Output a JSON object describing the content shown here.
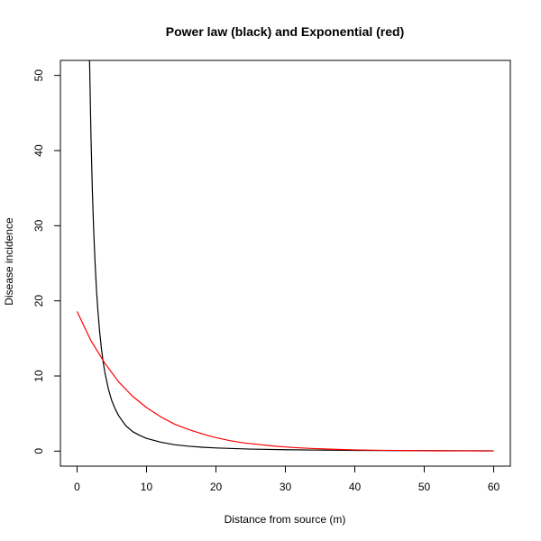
{
  "chart_data": {
    "type": "line",
    "title": "Power law (black) and Exponential (red)",
    "xlabel": "Distance from source (m)",
    "ylabel": "Disease incidence",
    "xlim": [
      -2.4,
      62.4
    ],
    "ylim": [
      -2,
      52
    ],
    "x_ticks": [
      "0",
      "10",
      "20",
      "30",
      "40",
      "50",
      "60"
    ],
    "y_ticks": [
      "0",
      "10",
      "20",
      "30",
      "40",
      "50"
    ],
    "grid": false,
    "legend": "none",
    "series": [
      {
        "color": "#000000",
        "x": [
          1.8,
          2,
          2.2,
          2.4,
          2.6,
          2.8,
          3,
          3.25,
          3.5,
          3.75,
          4,
          4.5,
          5,
          5.5,
          6,
          7,
          8,
          9,
          10,
          12,
          14,
          16,
          18,
          20,
          25,
          30,
          35,
          40,
          45,
          50,
          55,
          60
        ],
        "y": [
          52.0,
          42.0,
          34.7,
          29.2,
          24.9,
          21.4,
          18.7,
          15.9,
          13.7,
          11.9,
          10.5,
          8.3,
          6.7,
          5.6,
          4.7,
          3.4,
          2.6,
          2.1,
          1.7,
          1.2,
          0.86,
          0.66,
          0.52,
          0.42,
          0.27,
          0.19,
          0.14,
          0.1,
          0.08,
          0.07,
          0.06,
          0.05
        ]
      },
      {
        "color": "#ff0000",
        "x": [
          0,
          2,
          4,
          6,
          8,
          10,
          12,
          14,
          16,
          18,
          20,
          22,
          24,
          26,
          28,
          30,
          32,
          34,
          36,
          38,
          40,
          42,
          44,
          46,
          48,
          50,
          52,
          54,
          56,
          58,
          60
        ],
        "y": [
          18.6,
          14.7,
          11.7,
          9.2,
          7.3,
          5.8,
          4.6,
          3.6,
          2.9,
          2.3,
          1.8,
          1.4,
          1.1,
          0.9,
          0.7,
          0.56,
          0.44,
          0.35,
          0.28,
          0.22,
          0.17,
          0.14,
          0.11,
          0.09,
          0.07,
          0.05,
          0.04,
          0.03,
          0.03,
          0.02,
          0.02
        ]
      }
    ]
  }
}
